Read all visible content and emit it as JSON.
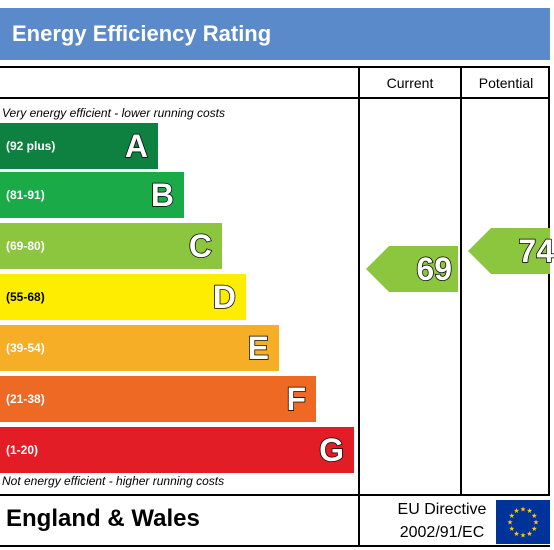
{
  "title": "Energy Efficiency Rating",
  "columns": {
    "current": "Current",
    "potential": "Potential"
  },
  "top_caption": "Very energy efficient - lower running costs",
  "bottom_caption": "Not energy efficient - higher running costs",
  "bands": [
    {
      "range": "(92 plus)",
      "letter": "A",
      "color": "#0e8040"
    },
    {
      "range": "(81-91)",
      "letter": "B",
      "color": "#1aaa48"
    },
    {
      "range": "(69-80)",
      "letter": "C",
      "color": "#8cc63e"
    },
    {
      "range": "(55-68)",
      "letter": "D",
      "color": "#ffed00"
    },
    {
      "range": "(39-54)",
      "letter": "E",
      "color": "#f6ae27"
    },
    {
      "range": "(21-38)",
      "letter": "F",
      "color": "#ee6a24"
    },
    {
      "range": "(1-20)",
      "letter": "G",
      "color": "#e31d25"
    }
  ],
  "current_rating": {
    "value": "69",
    "band": "C",
    "color": "#8cc63e"
  },
  "potential_rating": {
    "value": "74",
    "band": "C",
    "color": "#8cc63e"
  },
  "region": "England & Wales",
  "eu_directive_line1": "EU Directive",
  "eu_directive_line2": "2002/91/EC",
  "flag_icon": "eu-flag-icon"
}
